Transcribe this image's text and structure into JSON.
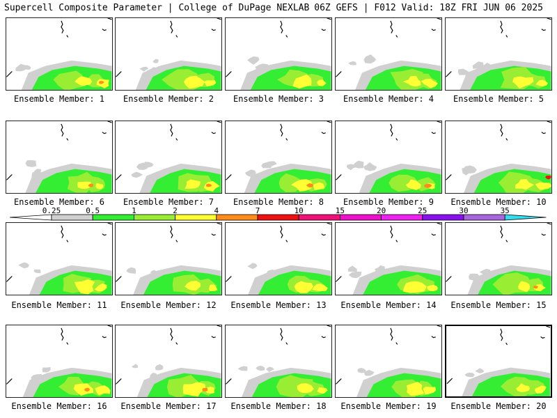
{
  "header": {
    "title": "Supercell Composite Parameter | College of DuPage NEXLAB",
    "run_info": "06Z GEFS | F012 Valid: 18Z FRI JUN 06 2025"
  },
  "panel_label_prefix": "Ensemble Member: ",
  "members": [
    {
      "number": "1"
    },
    {
      "number": "2"
    },
    {
      "number": "3"
    },
    {
      "number": "4"
    },
    {
      "number": "5"
    },
    {
      "number": "6"
    },
    {
      "number": "7"
    },
    {
      "number": "8"
    },
    {
      "number": "9"
    },
    {
      "number": "10"
    },
    {
      "number": "11"
    },
    {
      "number": "12"
    },
    {
      "number": "13"
    },
    {
      "number": "14"
    },
    {
      "number": "15"
    },
    {
      "number": "16"
    },
    {
      "number": "17"
    },
    {
      "number": "18"
    },
    {
      "number": "19"
    },
    {
      "number": "20"
    }
  ],
  "selected_member": "20",
  "colorbar": {
    "ticks": [
      "0.25",
      "0.5",
      "1",
      "2",
      "4",
      "7",
      "10",
      "15",
      "20",
      "25",
      "30",
      "35"
    ],
    "colors": [
      "#d0d0d0",
      "#33ee33",
      "#99ee33",
      "#ffff33",
      "#ff8c1a",
      "#ee1111",
      "#ee1177",
      "#ee11cc",
      "#ee22ee",
      "#8811ee",
      "#aa66dd",
      "#33ddee"
    ]
  },
  "map_colors": {
    "gray": "#d0d0d0",
    "green": "#33ee33",
    "lime": "#99ee33",
    "yellow": "#ffff33",
    "orange": "#ff8c1a",
    "red": "#ee1111"
  }
}
